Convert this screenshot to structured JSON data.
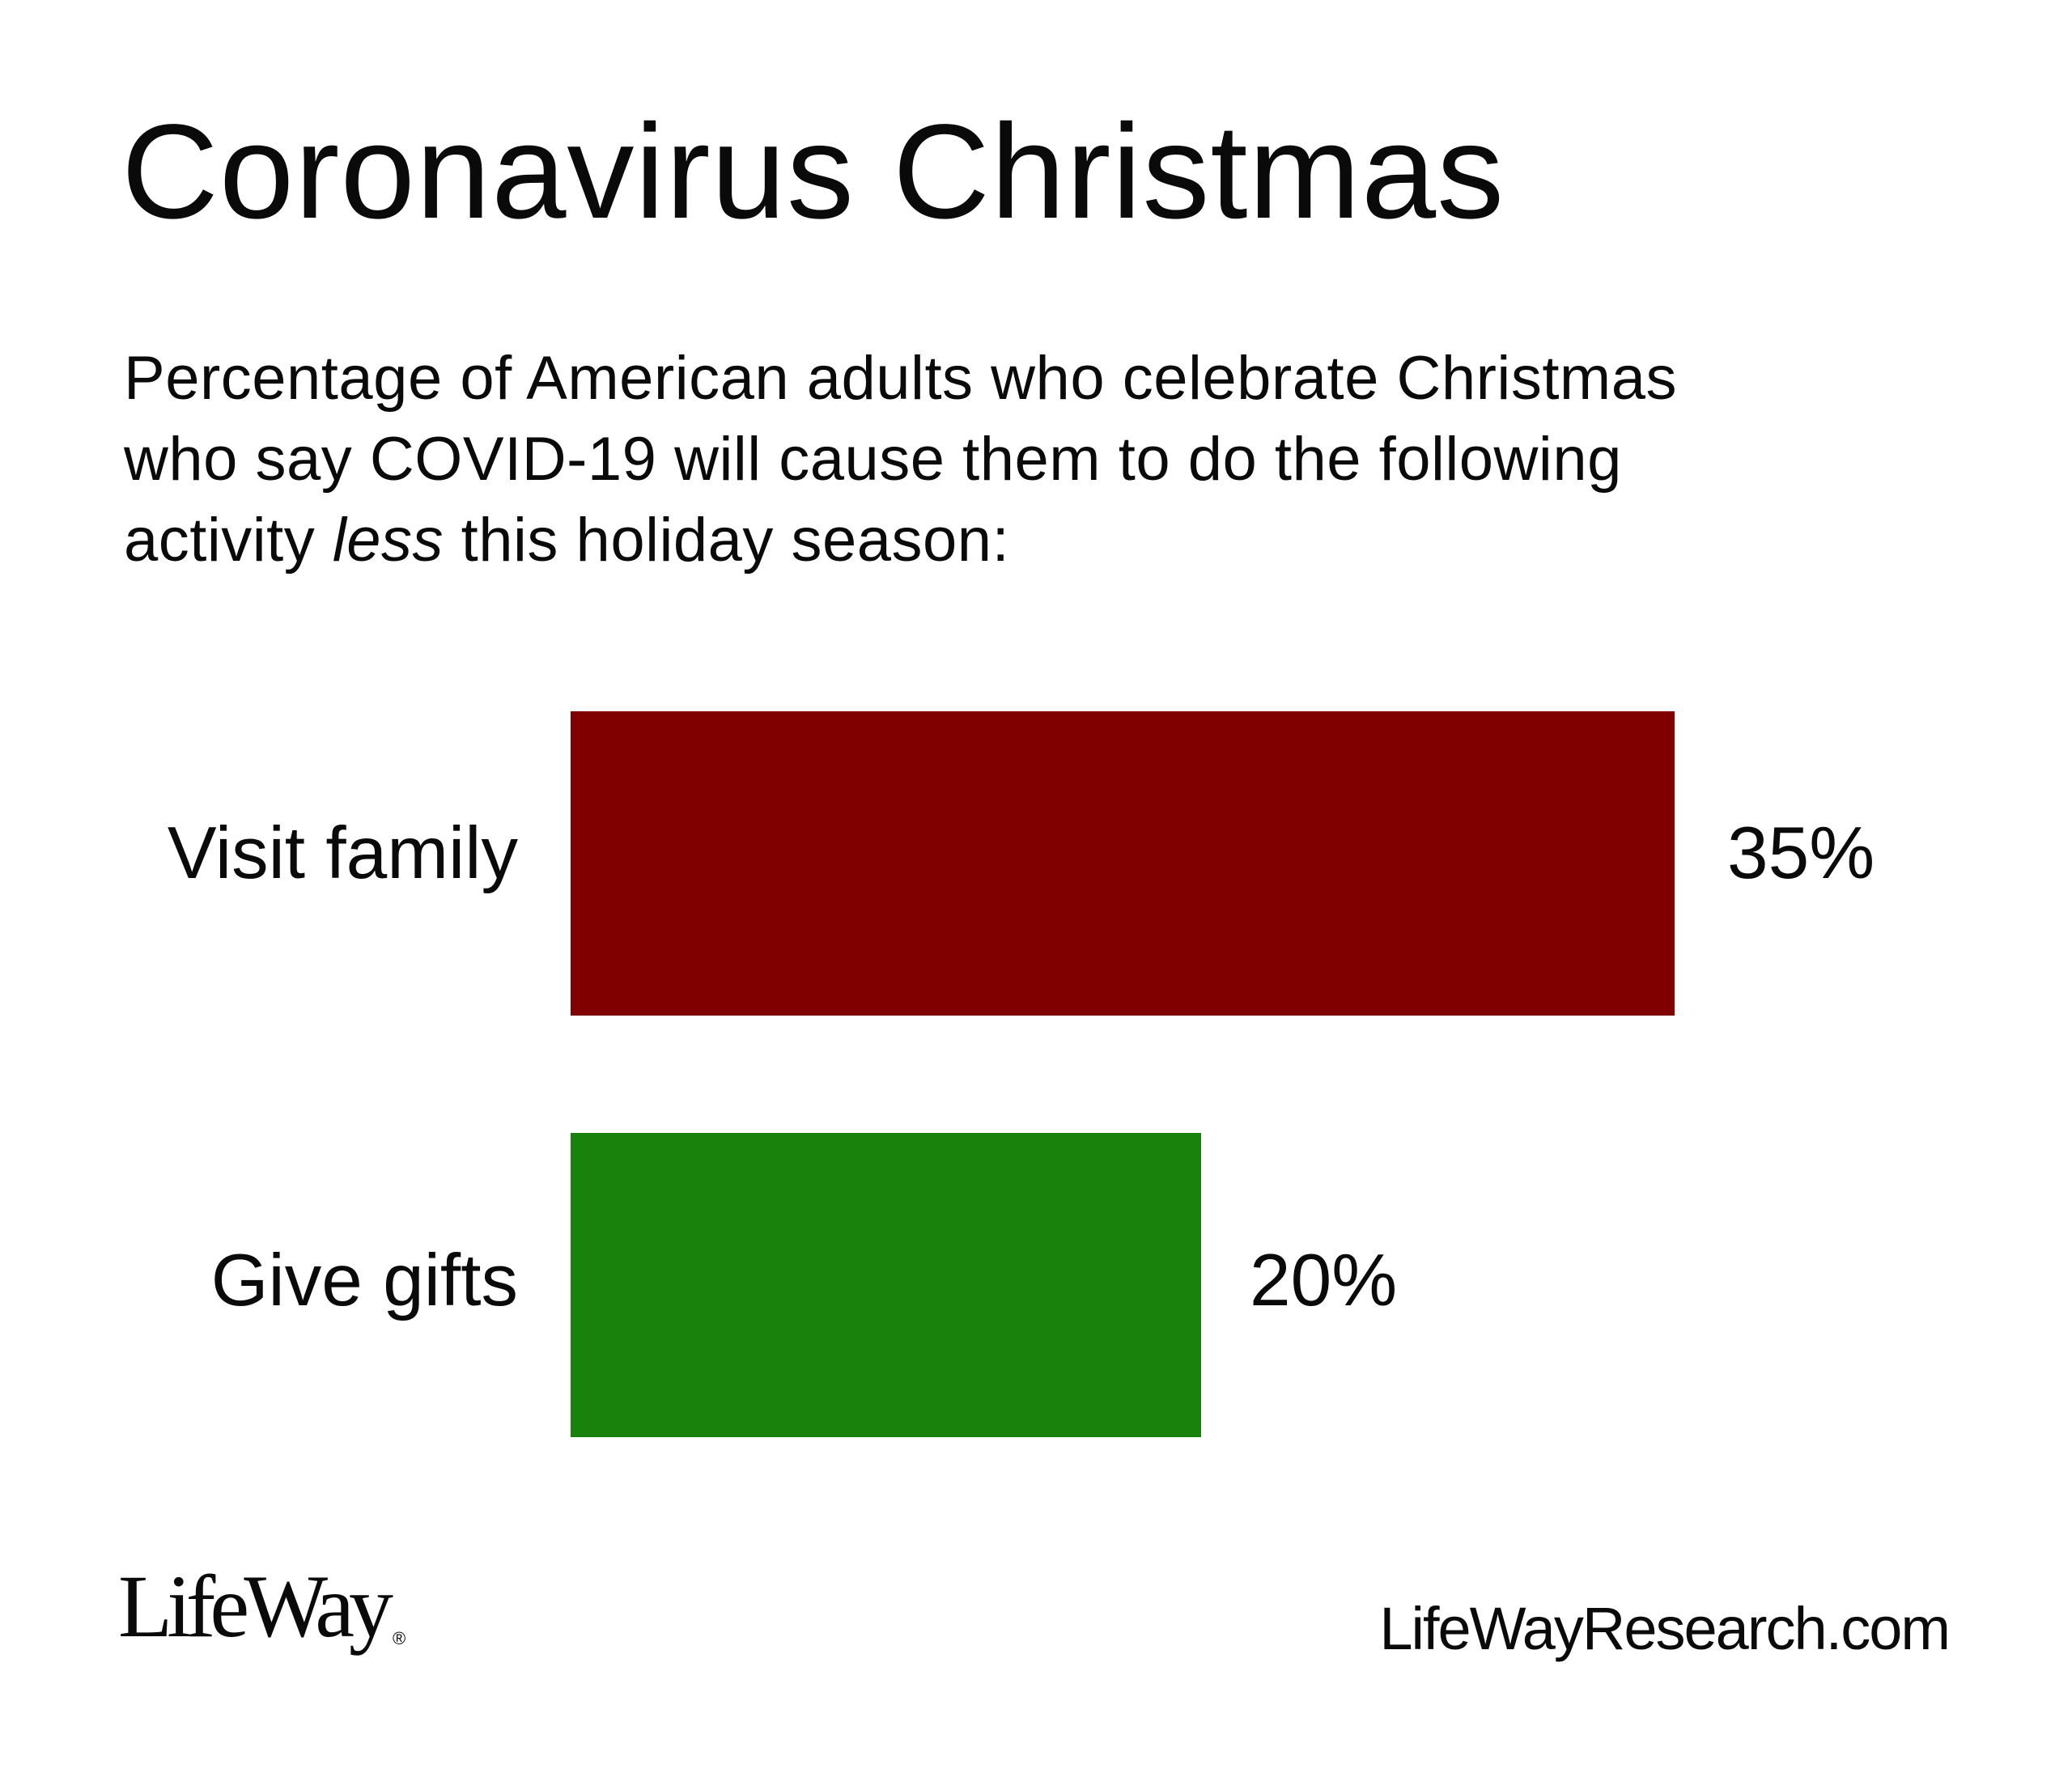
{
  "header": {
    "title": "Coronavirus Christmas",
    "subtitle_line1": "Percentage of American adults who celebrate Christmas",
    "subtitle_line2": "who say COVID-19 will cause them to do the following",
    "subtitle_line3_pre": "activity ",
    "subtitle_line3_em": "less",
    "subtitle_line3_post": " this holiday season:"
  },
  "chart_data": {
    "type": "bar",
    "orientation": "horizontal",
    "title": "Coronavirus Christmas",
    "subtitle": "Percentage of American adults who celebrate Christmas who say COVID-19 will cause them to do the following activity less this holiday season:",
    "categories": [
      "Visit family",
      "Give gifts"
    ],
    "values": [
      35,
      20
    ],
    "value_labels": [
      "35%",
      "20%"
    ],
    "colors": [
      "#800000",
      "#18820c"
    ],
    "xlabel": "",
    "ylabel": "",
    "grid": false,
    "legend": false
  },
  "bars": [
    {
      "label": "Visit family",
      "value_label": "35%",
      "color": "#800000"
    },
    {
      "label": "Give gifts",
      "value_label": "20%",
      "color": "#18820c"
    }
  ],
  "footer": {
    "logo_text": "LifeWay",
    "logo_mark": "®",
    "website": "LifeWayResearch.com"
  }
}
